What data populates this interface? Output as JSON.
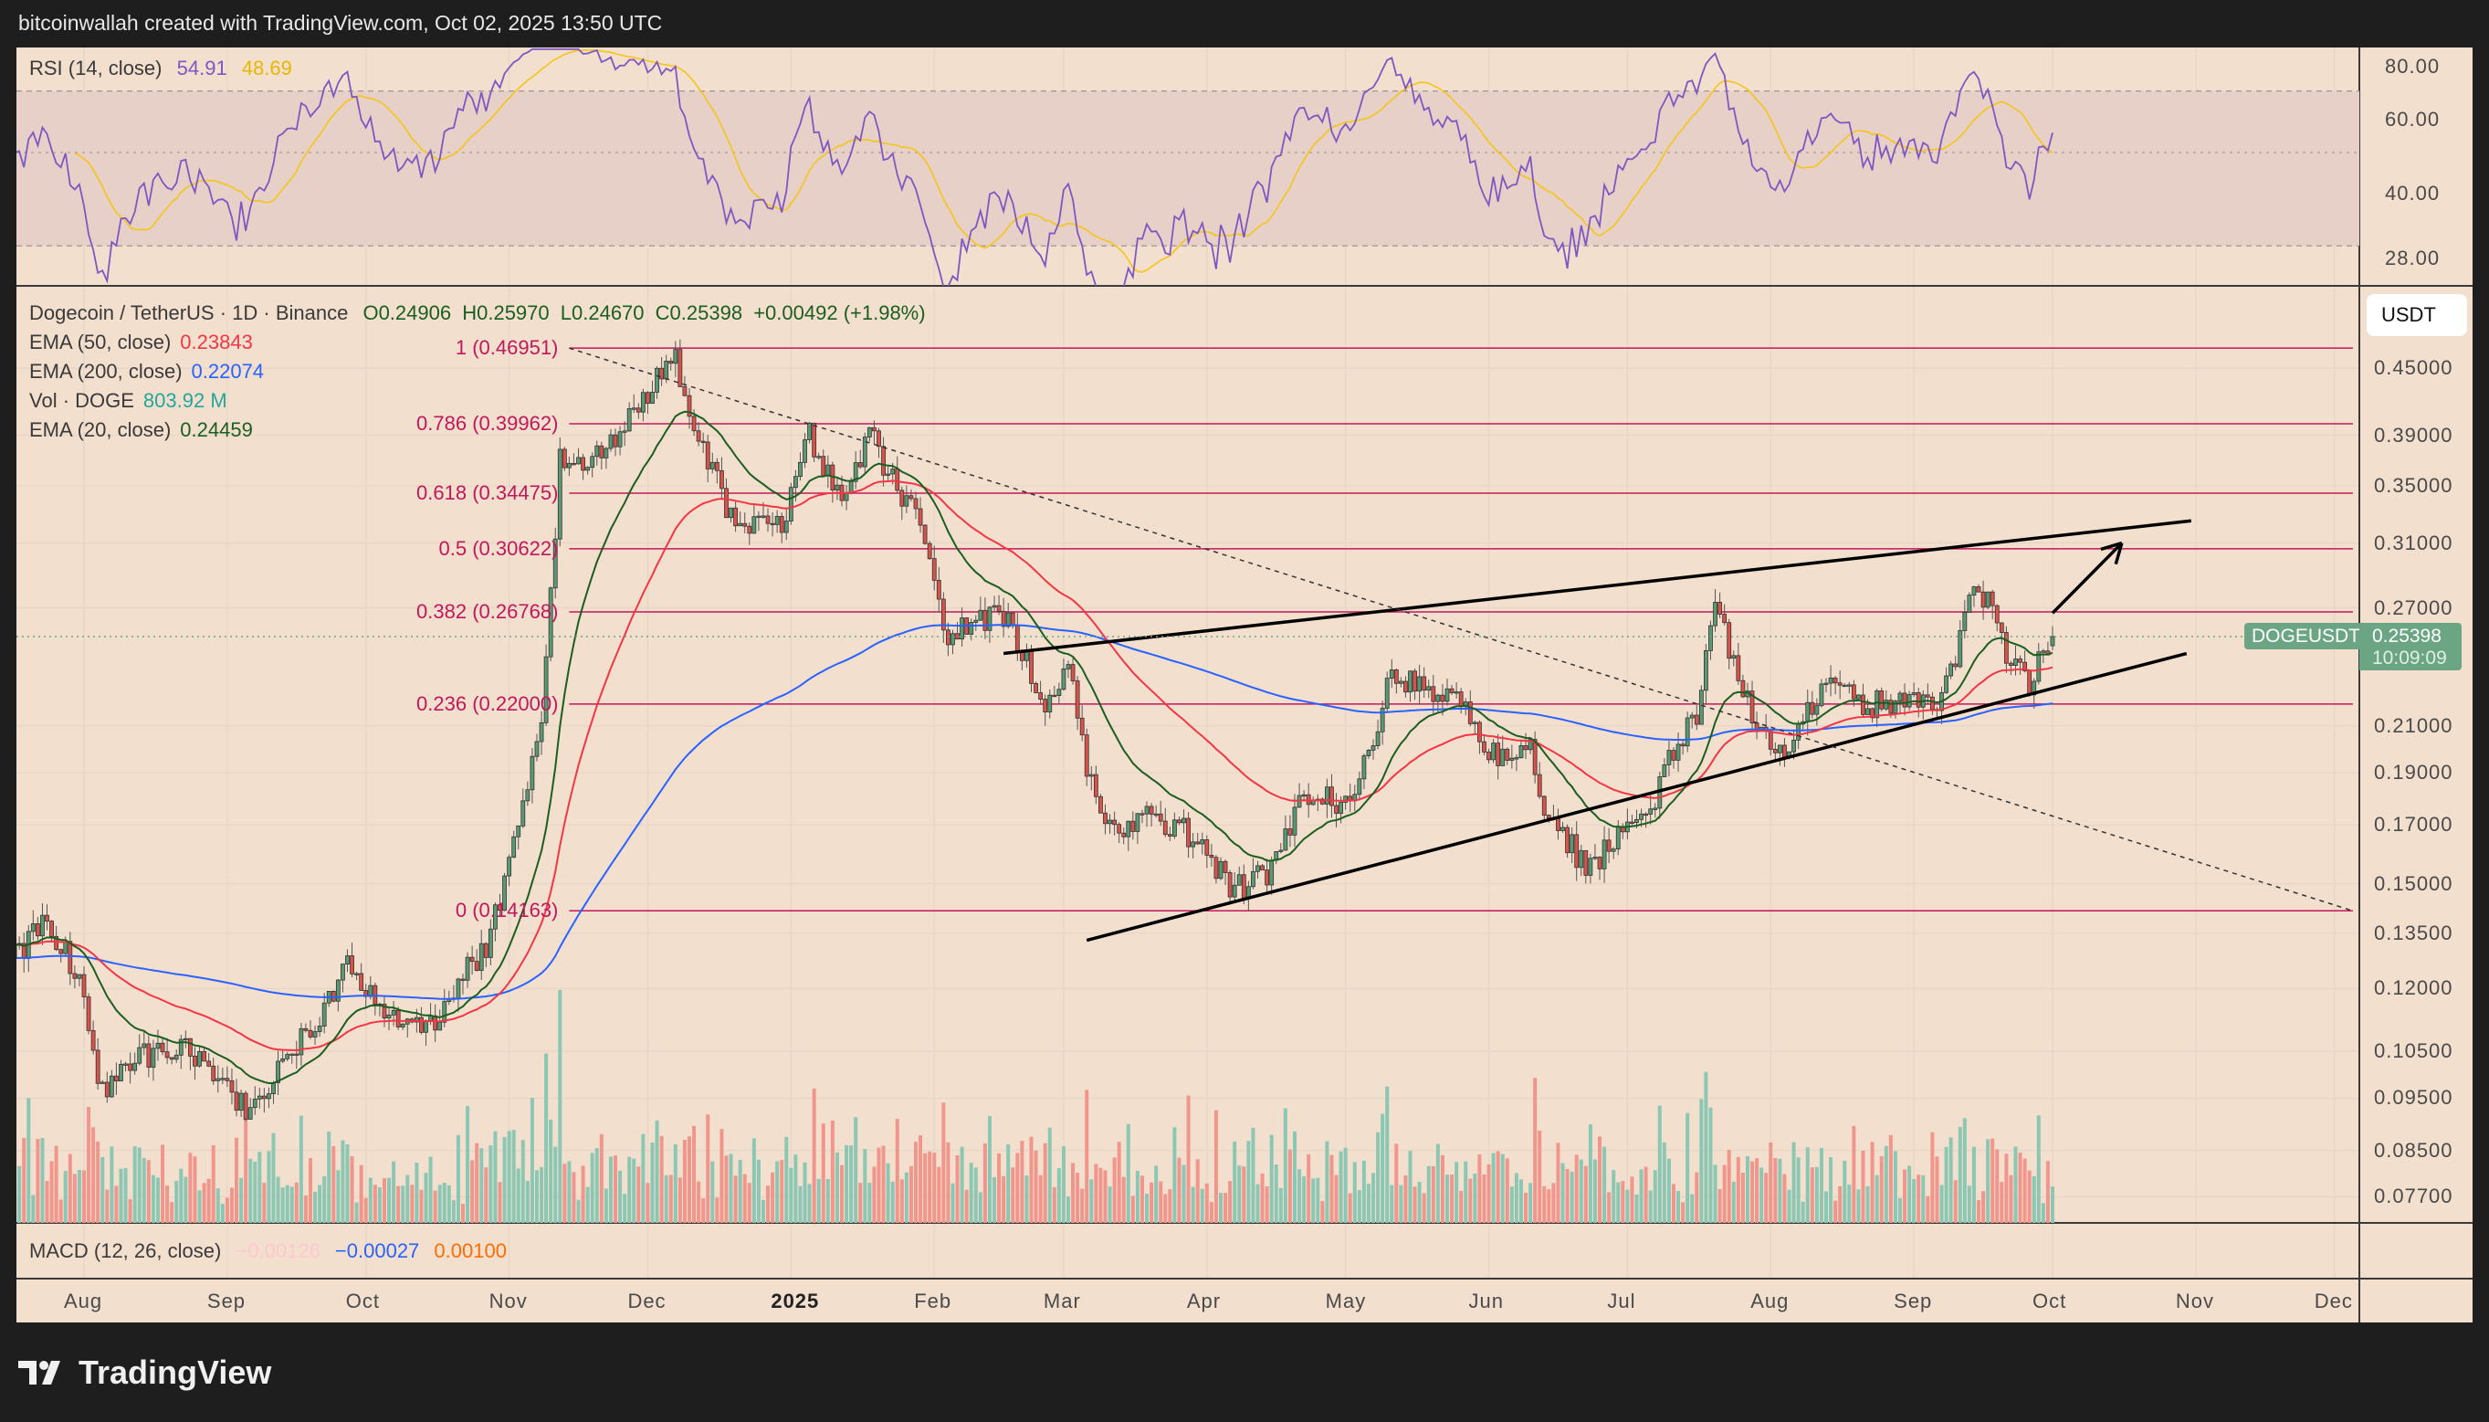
{
  "header": {
    "attribution": "bitcoinwallah created with TradingView.com, Oct 02, 2025 13:50 UTC"
  },
  "rsi_legend": {
    "label": "RSI (14, close)",
    "rsi": "54.91",
    "rsi_ma": "48.69"
  },
  "main_legend": {
    "symbol": "Dogecoin / TetherUS · 1D · Binance",
    "open": "O0.24906",
    "high": "H0.25970",
    "low": "L0.24670",
    "close": "C0.25398",
    "change": "+0.00492 (+1.98%)",
    "ema50_label": "EMA (50, close)",
    "ema50_value": "0.23843",
    "ema200_label": "EMA (200, close)",
    "ema200_value": "0.22074",
    "vol_label": "Vol · DOGE",
    "vol_value": "803.92 M",
    "ema20_label": "EMA (20, close)",
    "ema20_value": "0.24459"
  },
  "macd_legend": {
    "label": "MACD (12, 26, close)",
    "histogram": "−0.00126",
    "macd": "−0.00027",
    "signal": "0.00100"
  },
  "price_axis": {
    "currency": "USDT",
    "symbol_tag": "DOGEUSDT",
    "last_price": "0.25398",
    "countdown": "10:09:09"
  },
  "logo": {
    "text": "TradingView"
  },
  "colors": {
    "up": "#5a9a72",
    "down": "#d9534a",
    "ema20": "#1b5e20",
    "ema50": "#f23645",
    "ema200": "#2962ff",
    "rsi": "#7e57c2",
    "rsi_ma": "#f5c518",
    "fib": "#c2185b",
    "background": "#f2dfce"
  },
  "chart_data": {
    "type": "candlestick",
    "title": "Dogecoin / TetherUS · 1D · Binance",
    "y_scale": "log",
    "ylim": [
      0.074,
      0.5
    ],
    "grid": true,
    "x_ticks": [
      {
        "label": "Aug",
        "date": "2024-08-01"
      },
      {
        "label": "Sep",
        "date": "2024-09-01"
      },
      {
        "label": "Oct",
        "date": "2024-10-01"
      },
      {
        "label": "Nov",
        "date": "2024-11-01"
      },
      {
        "label": "Dec",
        "date": "2024-12-01"
      },
      {
        "label": "2025",
        "date": "2025-01-01"
      },
      {
        "label": "Feb",
        "date": "2025-02-01"
      },
      {
        "label": "Mar",
        "date": "2025-03-01"
      },
      {
        "label": "Apr",
        "date": "2025-04-01"
      },
      {
        "label": "May",
        "date": "2025-05-01"
      },
      {
        "label": "Jun",
        "date": "2025-06-01"
      },
      {
        "label": "Jul",
        "date": "2025-07-01"
      },
      {
        "label": "Aug",
        "date": "2025-08-01"
      },
      {
        "label": "Sep",
        "date": "2025-09-01"
      },
      {
        "label": "Oct",
        "date": "2025-10-01"
      },
      {
        "label": "Nov",
        "date": "2025-11-01"
      },
      {
        "label": "Dec",
        "date": "2025-12-01"
      }
    ],
    "y_ticks": [
      "0.45000",
      "0.39000",
      "0.35000",
      "0.31000",
      "0.27000",
      "0.21000",
      "0.19000",
      "0.17000",
      "0.15000",
      "0.13500",
      "0.12000",
      "0.10500",
      "0.09500",
      "0.08500",
      "0.07700"
    ],
    "rsi_ticks": [
      "80.00",
      "60.00",
      "40.00",
      "28.00"
    ],
    "last_candle": {
      "date": "2025-10-01",
      "open": 0.24906,
      "high": 0.2597,
      "low": 0.2467,
      "close": 0.25398
    },
    "close_path": [
      [
        "2024-07-17",
        0.128
      ],
      [
        "2024-07-23",
        0.138
      ],
      [
        "2024-07-30",
        0.126
      ],
      [
        "2024-08-05",
        0.096
      ],
      [
        "2024-08-12",
        0.104
      ],
      [
        "2024-08-24",
        0.106
      ],
      [
        "2024-09-01",
        0.096
      ],
      [
        "2024-09-06",
        0.093
      ],
      [
        "2024-09-15",
        0.104
      ],
      [
        "2024-09-28",
        0.127
      ],
      [
        "2024-10-05",
        0.113
      ],
      [
        "2024-10-14",
        0.109
      ],
      [
        "2024-10-28",
        0.134
      ],
      [
        "2024-11-01",
        0.159
      ],
      [
        "2024-11-08",
        0.208
      ],
      [
        "2024-11-12",
        0.37
      ],
      [
        "2024-11-20",
        0.37
      ],
      [
        "2024-11-28",
        0.41
      ],
      [
        "2024-12-07",
        0.46
      ],
      [
        "2024-12-10",
        0.4
      ],
      [
        "2024-12-20",
        0.323
      ],
      [
        "2024-12-30",
        0.32
      ],
      [
        "2025-01-05",
        0.39
      ],
      [
        "2025-01-12",
        0.335
      ],
      [
        "2025-01-18",
        0.395
      ],
      [
        "2025-01-22",
        0.36
      ],
      [
        "2025-01-27",
        0.335
      ],
      [
        "2025-02-01",
        0.292
      ],
      [
        "2025-02-03",
        0.255
      ],
      [
        "2025-02-10",
        0.26
      ],
      [
        "2025-02-15",
        0.27
      ],
      [
        "2025-02-20",
        0.247
      ],
      [
        "2025-02-25",
        0.215
      ],
      [
        "2025-03-03",
        0.238
      ],
      [
        "2025-03-05",
        0.2
      ],
      [
        "2025-03-10",
        0.17
      ],
      [
        "2025-03-20",
        0.172
      ],
      [
        "2025-03-28",
        0.167
      ],
      [
        "2025-04-07",
        0.148
      ],
      [
        "2025-04-15",
        0.155
      ],
      [
        "2025-04-22",
        0.182
      ],
      [
        "2025-05-01",
        0.178
      ],
      [
        "2025-05-08",
        0.208
      ],
      [
        "2025-05-11",
        0.238
      ],
      [
        "2025-05-15",
        0.23
      ],
      [
        "2025-05-25",
        0.222
      ],
      [
        "2025-06-01",
        0.198
      ],
      [
        "2025-06-10",
        0.2
      ],
      [
        "2025-06-13",
        0.178
      ],
      [
        "2025-06-22",
        0.155
      ],
      [
        "2025-06-30",
        0.167
      ],
      [
        "2025-07-07",
        0.178
      ],
      [
        "2025-07-11",
        0.2
      ],
      [
        "2025-07-16",
        0.215
      ],
      [
        "2025-07-20",
        0.273
      ],
      [
        "2025-07-25",
        0.23
      ],
      [
        "2025-08-02",
        0.198
      ],
      [
        "2025-08-08",
        0.211
      ],
      [
        "2025-08-13",
        0.235
      ],
      [
        "2025-08-20",
        0.219
      ],
      [
        "2025-08-28",
        0.222
      ],
      [
        "2025-09-05",
        0.219
      ],
      [
        "2025-09-10",
        0.238
      ],
      [
        "2025-09-13",
        0.282
      ],
      [
        "2025-09-18",
        0.273
      ],
      [
        "2025-09-22",
        0.238
      ],
      [
        "2025-09-26",
        0.23
      ],
      [
        "2025-10-01",
        0.25398
      ]
    ],
    "fibonacci": [
      {
        "label": "1 (0.46951)",
        "price": 0.46951
      },
      {
        "label": "0.786 (0.39962)",
        "price": 0.39962
      },
      {
        "label": "0.618 (0.34475)",
        "price": 0.34475
      },
      {
        "label": "0.5 (0.30622)",
        "price": 0.30622
      },
      {
        "label": "0.382 (0.26768)",
        "price": 0.26768
      },
      {
        "label": "0.236 (0.22000)",
        "price": 0.22
      },
      {
        "label": "0 (0.14163)",
        "price": 0.14163
      }
    ],
    "trendlines": [
      {
        "name": "upper-wedge",
        "from": [
          "2025-02-16",
          0.245
        ],
        "to": [
          "2025-10-31",
          0.325
        ]
      },
      {
        "name": "lower-wedge",
        "from": [
          "2025-03-06",
          0.133
        ],
        "to": [
          "2025-10-30",
          0.245
        ]
      },
      {
        "name": "breakout-arrow",
        "from": [
          "2025-10-01",
          0.267
        ],
        "to": [
          "2025-10-16",
          0.31
        ]
      },
      {
        "name": "descending-dashed",
        "from": [
          "2024-11-14",
          0.4695
        ],
        "to": [
          "2025-12-05",
          0.1416
        ]
      }
    ]
  }
}
